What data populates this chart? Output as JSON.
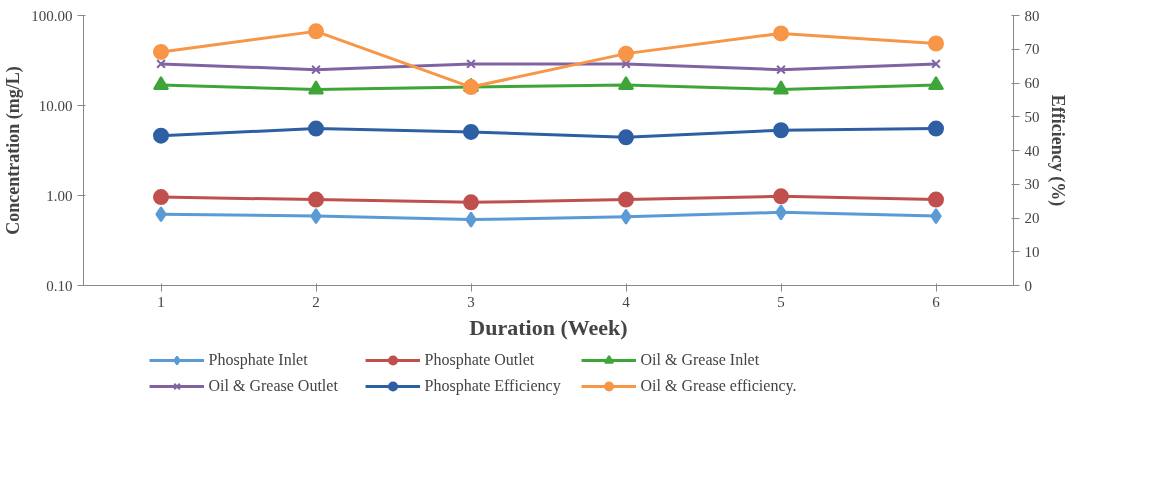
{
  "chart_data": {
    "type": "line",
    "xlabel": "Duration (Week)",
    "ylabel": "Concentration (mg/L)",
    "y2label": "Efficiency (%)",
    "categories": [
      "1",
      "2",
      "3",
      "4",
      "5",
      "6"
    ],
    "log": "y",
    "ylim": [
      0.1,
      100
    ],
    "yticks": [
      {
        "value": 0.1,
        "label": "0.10"
      },
      {
        "value": 1,
        "label": "1.00"
      },
      {
        "value": 10,
        "label": "10.00"
      },
      {
        "value": 100,
        "label": "100.00"
      }
    ],
    "y2lim": [
      0,
      80
    ],
    "y2ticks": [
      0,
      10,
      20,
      30,
      40,
      50,
      60,
      70,
      80
    ],
    "grid": false,
    "legend": "bottom",
    "series": [
      {
        "name": "Phosphate Inlet",
        "color": "#5b9bd5",
        "marker": "diamond",
        "values": [
          0.62,
          0.59,
          0.54,
          0.58,
          0.65,
          0.59
        ]
      },
      {
        "name": "Phosphate Outlet",
        "color": "#c0504d",
        "marker": "circle",
        "values": [
          0.96,
          0.9,
          0.84,
          0.9,
          0.98,
          0.9
        ]
      },
      {
        "name": "Oil & Grease Inlet",
        "color": "#3ea638",
        "marker": "triangle",
        "values": [
          16.9,
          15.1,
          16.1,
          16.9,
          15.1,
          16.9
        ]
      },
      {
        "name": "Oil & Grease Outlet",
        "color": "#8064a2",
        "marker": "cross",
        "values": [
          29,
          25,
          29,
          29,
          25,
          29
        ]
      },
      {
        "name": "Phosphate Efficiency",
        "color": "#2e5fa3",
        "marker": "circle",
        "axis": "y2",
        "values": [
          44.4,
          46.5,
          45.5,
          43.9,
          46.0,
          46.5
        ]
      },
      {
        "name": "Oil & Grease efficiency.",
        "color": "#f79646",
        "marker": "circle",
        "axis": "y2",
        "values": [
          69.2,
          75.3,
          58.8,
          68.7,
          74.7,
          71.7
        ]
      }
    ]
  }
}
